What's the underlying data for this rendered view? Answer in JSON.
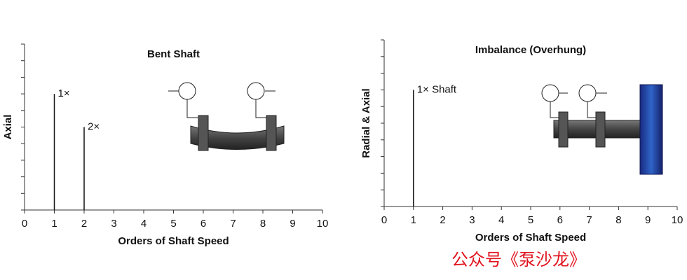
{
  "chart_data": [
    {
      "type": "stem",
      "title": "Bent Shaft",
      "xlabel": "Orders of Shaft Speed",
      "ylabel": "Axial",
      "xlim": [
        0,
        10
      ],
      "xticks": [
        0,
        1,
        2,
        3,
        4,
        5,
        6,
        7,
        8,
        9,
        10
      ],
      "ylim": [
        0,
        10
      ],
      "yticks": [
        0,
        1,
        2,
        3,
        4,
        5,
        6,
        7,
        8,
        9,
        10
      ],
      "ytick_labels": false,
      "series": [
        {
          "color": "#111111",
          "x": [
            1,
            2
          ],
          "values": [
            7,
            5
          ],
          "point_labels": [
            "1×",
            "2×"
          ]
        }
      ]
    },
    {
      "type": "stem",
      "title": "Imbalance (Overhung)",
      "xlabel": "Orders of Shaft Speed",
      "ylabel": "Radial & Axial",
      "xlim": [
        0,
        10
      ],
      "xticks": [
        0,
        1,
        2,
        3,
        4,
        5,
        6,
        7,
        8,
        9,
        10
      ],
      "ylim": [
        0,
        10
      ],
      "yticks": [
        0,
        1,
        2,
        3,
        4,
        5,
        6,
        7,
        8,
        9,
        10
      ],
      "ytick_labels": false,
      "series": [
        {
          "color": "#111111",
          "x": [
            1
          ],
          "values": [
            7
          ],
          "point_labels": [
            "1× Shaft"
          ]
        }
      ]
    }
  ],
  "watermark": "公众号《泵沙龙》"
}
